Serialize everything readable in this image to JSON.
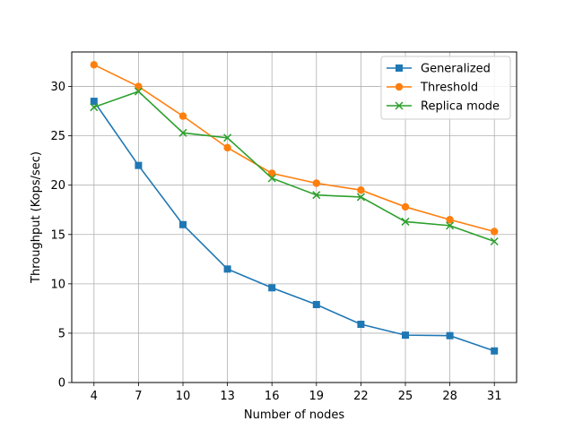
{
  "chart_data": {
    "type": "line",
    "xlabel": "Number of nodes",
    "ylabel": "Throughput (Kops/sec)",
    "x": [
      4,
      7,
      10,
      13,
      16,
      19,
      22,
      25,
      28,
      31
    ],
    "xlim": [
      2.5,
      32.5
    ],
    "ylim": [
      0,
      33.5
    ],
    "yticks": [
      0,
      5,
      10,
      15,
      20,
      25,
      30
    ],
    "grid": true,
    "legend_position": "top-right",
    "series": [
      {
        "name": "Generalized",
        "color": "#1f77b4",
        "marker": "square",
        "values": [
          28.5,
          22.0,
          16.0,
          11.5,
          9.6,
          7.9,
          5.9,
          4.8,
          4.75,
          3.2
        ]
      },
      {
        "name": "Threshold",
        "color": "#ff7f0e",
        "marker": "circle",
        "values": [
          32.2,
          30.0,
          27.0,
          23.8,
          21.2,
          20.2,
          19.5,
          17.8,
          16.5,
          15.3
        ]
      },
      {
        "name": "Replica mode",
        "color": "#2ca02c",
        "marker": "x",
        "values": [
          27.9,
          29.5,
          25.3,
          24.8,
          20.7,
          19.0,
          18.8,
          16.3,
          15.9,
          14.3
        ]
      }
    ]
  }
}
